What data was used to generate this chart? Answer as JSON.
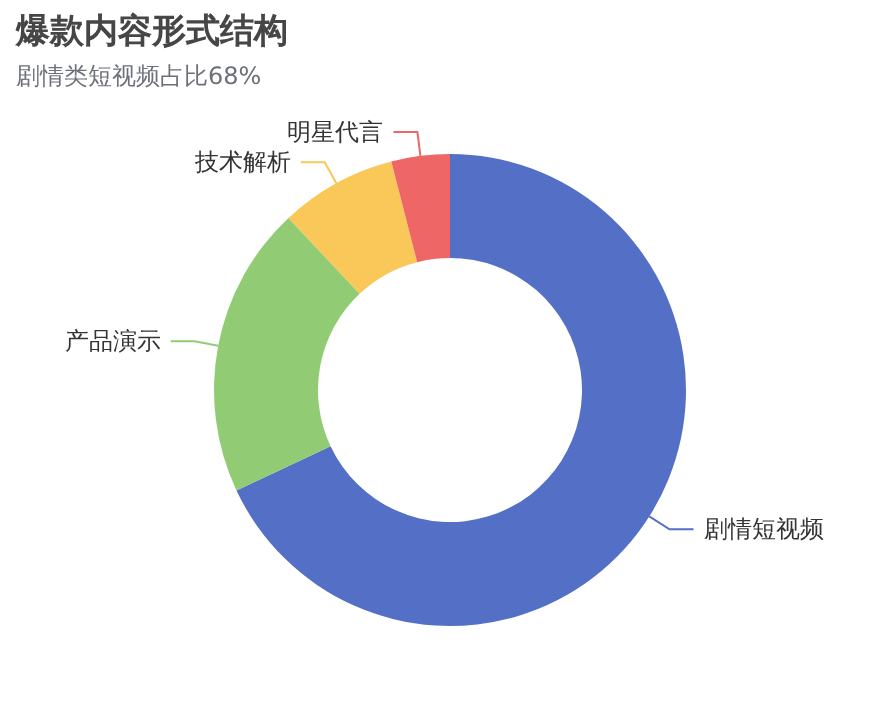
{
  "chart_data": {
    "type": "donut",
    "title": "爆款内容形式结构",
    "subtitle": "剧情类短视频占比68%",
    "categories": [
      "剧情短视频",
      "产品演示",
      "技术解析",
      "明星代言"
    ],
    "values": [
      68,
      20,
      8,
      4
    ],
    "colors": [
      "#5470c6",
      "#91cc75",
      "#fac858",
      "#ee6666"
    ]
  }
}
